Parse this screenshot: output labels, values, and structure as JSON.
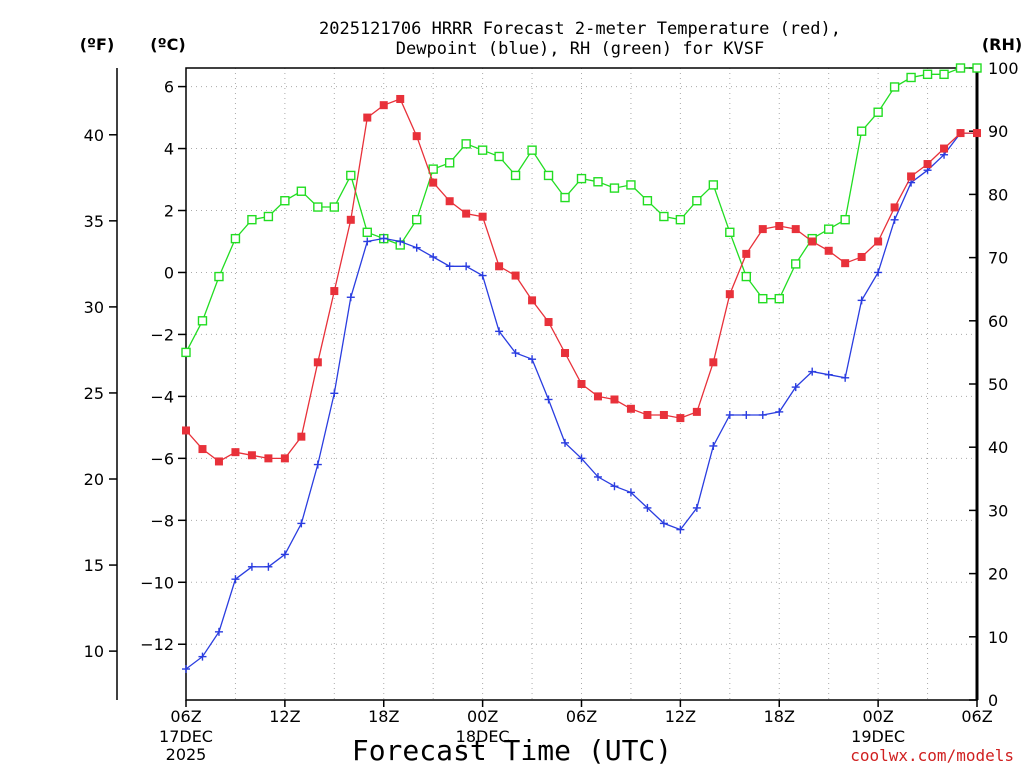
{
  "chart_data": {
    "type": "line",
    "title_lines": [
      "2025121706 HRRR Forecast 2-meter Temperature (red),",
      "Dewpoint (blue), RH (green) for KVSF"
    ],
    "xlabel": "Forecast Time (UTC)",
    "credit": "coolwx.com/models",
    "left_outer_unit": "(ºF)",
    "left_inner_unit": "(ºC)",
    "right_unit": "(RH)",
    "x_range_hours": [
      0,
      48
    ],
    "celsius_range": [
      -13.8,
      6.6
    ],
    "rh_range": [
      0,
      100
    ],
    "celsius_ticks": [
      6,
      4,
      2,
      0,
      -2,
      -4,
      -6,
      -8,
      -10,
      -12
    ],
    "fahrenheit_ticks": [
      40,
      35,
      30,
      25,
      20,
      15,
      10
    ],
    "rh_ticks": [
      100,
      90,
      80,
      70,
      60,
      50,
      40,
      30,
      20,
      10,
      0
    ],
    "x_ticks": [
      {
        "hour": 0,
        "label": "06Z"
      },
      {
        "hour": 6,
        "label": "12Z"
      },
      {
        "hour": 12,
        "label": "18Z"
      },
      {
        "hour": 18,
        "label": "00Z"
      },
      {
        "hour": 24,
        "label": "06Z"
      },
      {
        "hour": 30,
        "label": "12Z"
      },
      {
        "hour": 36,
        "label": "18Z"
      },
      {
        "hour": 42,
        "label": "00Z"
      },
      {
        "hour": 48,
        "label": "06Z"
      }
    ],
    "date_labels": [
      {
        "hour": 0,
        "lines": [
          "17DEC",
          "2025"
        ]
      },
      {
        "hour": 18,
        "lines": [
          "18DEC"
        ]
      },
      {
        "hour": 42,
        "lines": [
          "19DEC"
        ]
      }
    ],
    "series": [
      {
        "name": "Temperature",
        "color": "#e8313a",
        "marker": "filled-square",
        "axis": "celsius",
        "values": [
          -5.1,
          -5.7,
          -6.1,
          -5.8,
          -5.9,
          -6.0,
          -6.0,
          -5.3,
          -2.9,
          -0.6,
          1.7,
          5.0,
          5.4,
          5.6,
          4.4,
          2.9,
          2.3,
          1.9,
          1.8,
          0.2,
          -0.1,
          -0.9,
          -1.6,
          -2.6,
          -3.6,
          -4.0,
          -4.1,
          -4.4,
          -4.6,
          -4.6,
          -4.7,
          -4.5,
          -2.9,
          -0.7,
          0.6,
          1.4,
          1.5,
          1.4,
          1.0,
          0.7,
          0.3,
          0.5,
          1.0,
          2.1,
          3.1,
          3.5,
          4.0,
          4.5,
          4.5
        ]
      },
      {
        "name": "Dewpoint",
        "color": "#2a3de0",
        "marker": "plus",
        "axis": "celsius",
        "values": [
          -12.8,
          -12.4,
          -11.6,
          -9.9,
          -9.5,
          -9.5,
          -9.1,
          -8.1,
          -6.2,
          -3.9,
          -0.8,
          1.0,
          1.1,
          1.0,
          0.8,
          0.5,
          0.2,
          0.2,
          -0.1,
          -1.9,
          -2.6,
          -2.8,
          -4.1,
          -5.5,
          -6.0,
          -6.6,
          -6.9,
          -7.1,
          -7.6,
          -8.1,
          -8.3,
          -7.6,
          -5.6,
          -4.6,
          -4.6,
          -4.6,
          -4.5,
          -3.7,
          -3.2,
          -3.3,
          -3.4,
          -0.9,
          0.0,
          1.7,
          2.9,
          3.3,
          3.8,
          4.5,
          4.5
        ]
      },
      {
        "name": "RH",
        "color": "#22dd22",
        "marker": "open-square",
        "axis": "rh",
        "values": [
          55,
          60,
          67,
          73,
          76,
          76.5,
          79,
          80.5,
          78,
          78,
          83,
          74,
          73,
          72,
          76,
          84,
          85,
          88,
          87,
          86,
          83,
          87,
          83,
          79.5,
          82.5,
          82,
          81,
          81.5,
          79,
          76.5,
          76,
          79,
          81.5,
          74,
          67,
          63.5,
          63.5,
          69,
          73,
          74.5,
          76,
          90,
          93,
          97,
          98.5,
          99,
          99,
          100,
          100
        ]
      }
    ]
  }
}
